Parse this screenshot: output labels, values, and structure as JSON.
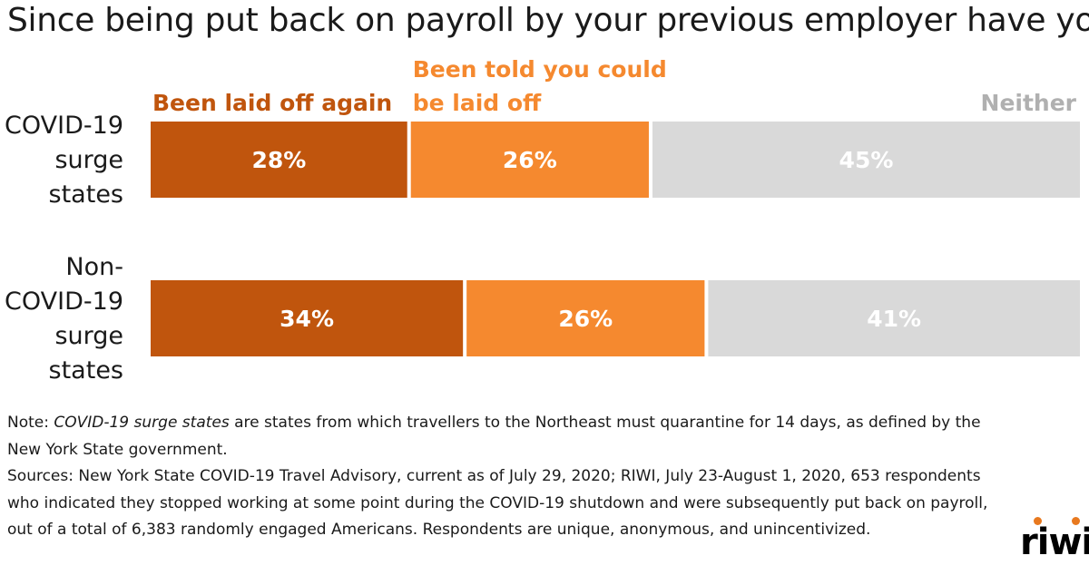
{
  "title": "Since being put back on payroll by your previous employer have you:",
  "chart_data": {
    "type": "bar",
    "orientation": "horizontal",
    "stacked": true,
    "categories": [
      "COVID-19 surge states",
      "Non-COVID-19 surge states"
    ],
    "series": [
      {
        "name": "Been laid off again",
        "values": [
          28,
          34
        ],
        "color": "#c0550d",
        "label_color": "#c0550d"
      },
      {
        "name": "Been told you could be laid off",
        "values": [
          26,
          26
        ],
        "color": "#f5892f",
        "label_color": "#f5892f"
      },
      {
        "name": "Neither",
        "values": [
          45,
          41
        ],
        "color": "#d9d9d9",
        "label_color": "#b0b0b0"
      }
    ],
    "unit": "%",
    "legend": "top, above first bar",
    "grid": false
  },
  "note": {
    "lead": "Note: ",
    "term": "COVID-19 surge states",
    "rest": " are states from which travellers to the Northeast must quarantine for 14 days, as defined by the New York State government.",
    "sources": "Sources: New York State COVID-19 Travel Advisory, current as of July 29, 2020; RIWI, July 23-August 1, 2020, 653 respondents who indicated they stopped working at some point during the COVID-19 shutdown and were subsequently put back on payroll, out of a total of 6,383 randomly engaged Americans. Respondents are unique, anonymous, and unincentivized."
  },
  "logo": {
    "text": "riwi",
    "dot_color": "#e8791f"
  }
}
